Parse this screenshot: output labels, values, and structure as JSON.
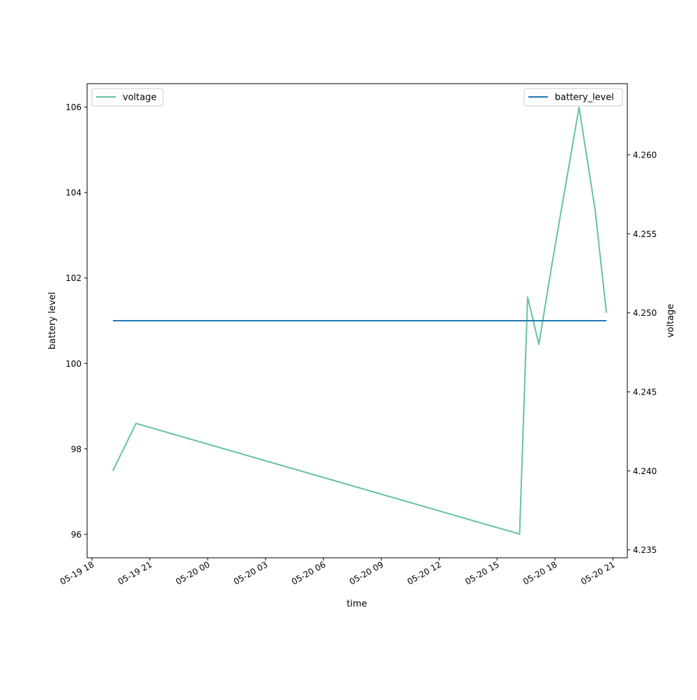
{
  "chart_data": {
    "type": "line",
    "xlabel": "time",
    "ylabel_left": "battery level",
    "ylabel_right": "voltage",
    "xlim": [
      "2019-05-19T17:45:00",
      "2019-05-20T21:45:00"
    ],
    "ylim_left": [
      95.45,
      106.55
    ],
    "ylim_right": [
      4.2345,
      4.2645
    ],
    "x_ticks": [
      {
        "t": "2019-05-19T18:00:00",
        "label": "05-19 18"
      },
      {
        "t": "2019-05-19T21:00:00",
        "label": "05-19 21"
      },
      {
        "t": "2019-05-20T00:00:00",
        "label": "05-20 00"
      },
      {
        "t": "2019-05-20T03:00:00",
        "label": "05-20 03"
      },
      {
        "t": "2019-05-20T06:00:00",
        "label": "05-20 06"
      },
      {
        "t": "2019-05-20T09:00:00",
        "label": "05-20 09"
      },
      {
        "t": "2019-05-20T12:00:00",
        "label": "05-20 12"
      },
      {
        "t": "2019-05-20T15:00:00",
        "label": "05-20 15"
      },
      {
        "t": "2019-05-20T18:00:00",
        "label": "05-20 18"
      },
      {
        "t": "2019-05-20T21:00:00",
        "label": "05-20 21"
      }
    ],
    "y_left_ticks": [
      {
        "v": 96,
        "label": "96"
      },
      {
        "v": 98,
        "label": "98"
      },
      {
        "v": 100,
        "label": "100"
      },
      {
        "v": 102,
        "label": "102"
      },
      {
        "v": 104,
        "label": "104"
      },
      {
        "v": 106,
        "label": "106"
      }
    ],
    "y_right_ticks": [
      {
        "v": 4.235,
        "label": "4.235"
      },
      {
        "v": 4.24,
        "label": "4.240"
      },
      {
        "v": 4.245,
        "label": "4.245"
      },
      {
        "v": 4.25,
        "label": "4.250"
      },
      {
        "v": 4.255,
        "label": "4.255"
      },
      {
        "v": 4.26,
        "label": "4.260"
      }
    ],
    "series": [
      {
        "name": "voltage",
        "axis": "right",
        "color": "#66c2a5",
        "legend": "top-left",
        "points": [
          {
            "t": "2019-05-19T19:05:00",
            "v": 4.24
          },
          {
            "t": "2019-05-19T20:17:00",
            "v": 4.243
          },
          {
            "t": "2019-05-20T16:10:00",
            "v": 4.236
          },
          {
            "t": "2019-05-20T16:35:00",
            "v": 4.251
          },
          {
            "t": "2019-05-20T17:10:00",
            "v": 4.248
          },
          {
            "t": "2019-05-20T17:50:00",
            "v": 4.253
          },
          {
            "t": "2019-05-20T19:15:00",
            "v": 4.263
          },
          {
            "t": "2019-05-20T20:05:00",
            "v": 4.2565
          },
          {
            "t": "2019-05-20T20:40:00",
            "v": 4.25
          }
        ]
      },
      {
        "name": "battery_level",
        "axis": "left",
        "color": "#1f77b4",
        "legend": "top-right",
        "points": [
          {
            "t": "2019-05-19T19:05:00",
            "v": 101
          },
          {
            "t": "2019-05-20T20:40:00",
            "v": 101
          }
        ]
      }
    ]
  }
}
